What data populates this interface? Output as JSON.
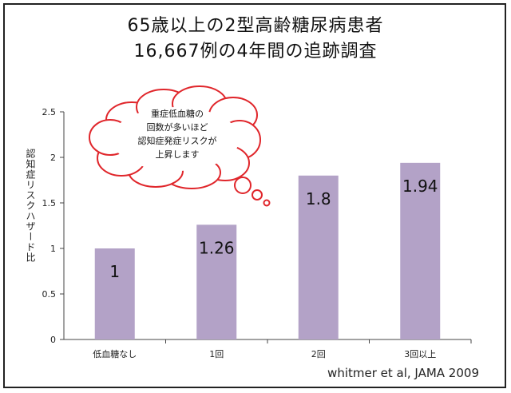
{
  "chart_data": {
    "type": "bar",
    "title_line1": "65歳以上の2型高齢糖尿病患者",
    "title_line2": "16,667例の4年間の追跡調査",
    "ylabel": "認知症リスクハザード比",
    "xlabel": "",
    "categories": [
      "低血糖なし",
      "1回",
      "2回",
      "3回以上"
    ],
    "values": [
      1,
      1.26,
      1.8,
      1.94
    ],
    "value_labels": [
      "1",
      "1.26",
      "1.8",
      "1.94"
    ],
    "ylim": [
      0,
      2.5
    ],
    "yticks": [
      0,
      0.5,
      1,
      1.5,
      2,
      2.5
    ],
    "ytick_labels": [
      "0",
      "0.5",
      "1",
      "1.5",
      "2",
      "2.5"
    ],
    "bar_color": "#b3a2c7",
    "grid": false,
    "annotation": [
      "重症低血糖の",
      "回数が多いほど",
      "認知症発症リスクが",
      "上昇します"
    ],
    "annotation_color": "#e0262b",
    "source": "whitmer et al, JAMA 2009"
  }
}
